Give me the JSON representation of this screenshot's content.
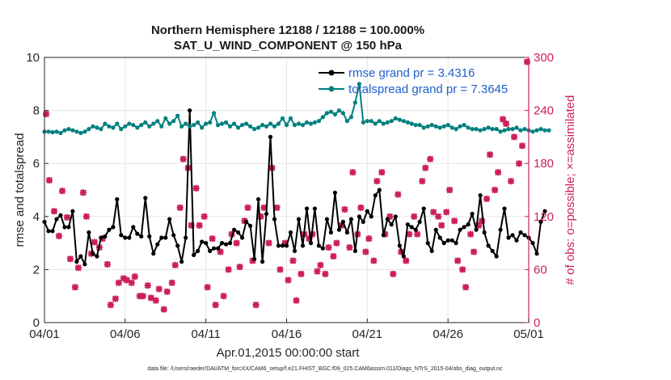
{
  "chart_data": {
    "type": "line",
    "title_line1": "Northern Hemisphere 12188 / 12188 = 100.000%",
    "title_line2": "SAT_U_WIND_COMPONENT @ 150 hPa",
    "xlabel": "Apr.01,2015 00:00:00 start",
    "ylabel_left": "rmse and totalspread",
    "ylabel_right": "# of obs: o=possible; ×=assimilated",
    "footer": "data file: /Users/raeder/DAI/ATM_forcXX/CAM6_setup/f.e21.FHIST_BGC.f09_025.CAM6assim.011/Diags_NTrS_2015-04/obs_diag_output.nc",
    "xlim": [
      0,
      30
    ],
    "ylim_left": [
      0,
      10
    ],
    "ylim_right": [
      0,
      300
    ],
    "x_ticks": [
      0,
      5,
      10,
      15,
      20,
      25,
      30
    ],
    "x_tick_labels": [
      "04/01",
      "04/06",
      "04/11",
      "04/16",
      "04/21",
      "04/26",
      "05/01"
    ],
    "y_ticks_left": [
      0,
      2,
      4,
      6,
      8,
      10
    ],
    "y_tick_labels_left": [
      "0",
      "2",
      "4",
      "6",
      "8",
      "10"
    ],
    "y_ticks_right": [
      0,
      60,
      120,
      180,
      240,
      300
    ],
    "y_tick_labels_right": [
      "0",
      "60",
      "120",
      "180",
      "240",
      "300"
    ],
    "grid": true,
    "legend_position": "top-right",
    "series": [
      {
        "name": "rmse grand pr = 3.4316",
        "color": "#000000",
        "marker": "circle",
        "step": 0.25,
        "values": [
          3.8,
          3.45,
          3.45,
          3.9,
          4.05,
          3.6,
          3.6,
          4.2,
          2.3,
          2.5,
          2.2,
          3.4,
          2.6,
          2.5,
          3.2,
          3.25,
          3.5,
          3.6,
          4.65,
          3.3,
          3.2,
          3.2,
          3.6,
          3.35,
          3.25,
          4.7,
          3.25,
          2.6,
          2.95,
          3.2,
          3.2,
          3.9,
          3.3,
          2.9,
          2.3,
          3.2,
          8.0,
          2.55,
          2.7,
          3.05,
          3.0,
          2.7,
          2.8,
          2.8,
          3.0,
          2.95,
          3.0,
          3.5,
          3.4,
          3.2,
          3.8,
          3.65,
          2.4,
          4.65,
          2.3,
          4.1,
          7.0,
          3.9,
          2.9,
          2.9,
          2.9,
          3.4,
          2.7,
          3.9,
          2.9,
          4.3,
          3.0,
          4.3,
          2.9,
          2.8,
          3.9,
          3.4,
          4.9,
          3.5,
          3.8,
          3.4,
          3.9,
          2.7,
          4.0,
          3.8,
          4.2,
          4.0,
          4.8,
          5.0,
          3.3,
          3.9,
          3.7,
          4.0,
          2.9,
          2.5,
          3.7,
          3.6,
          3.5,
          3.8,
          4.3,
          3.0,
          2.7,
          3.5,
          3.2,
          3.0,
          3.1,
          3.1,
          3.0,
          3.5,
          3.6,
          3.7,
          4.1,
          3.5,
          4.8,
          3.4,
          2.9,
          2.7,
          2.5,
          3.5,
          4.3,
          3.2,
          3.3,
          3.1,
          3.4,
          3.3,
          3.2,
          3.0,
          2.6,
          3.8,
          4.2
        ]
      },
      {
        "name": "totalspread grand pr = 7.3645",
        "color": "#00807f",
        "marker": "circle",
        "step": 0.25,
        "values": [
          7.2,
          7.2,
          7.18,
          7.2,
          7.15,
          7.25,
          7.3,
          7.25,
          7.2,
          7.15,
          7.2,
          7.3,
          7.4,
          7.35,
          7.3,
          7.5,
          7.4,
          7.35,
          7.5,
          7.3,
          7.4,
          7.5,
          7.45,
          7.35,
          7.45,
          7.55,
          7.4,
          7.5,
          7.6,
          7.4,
          7.7,
          7.5,
          7.6,
          7.8,
          7.4,
          7.5,
          7.4,
          7.45,
          7.55,
          7.35,
          7.5,
          7.55,
          7.9,
          7.45,
          7.5,
          7.55,
          7.4,
          7.5,
          7.35,
          7.45,
          7.5,
          7.4,
          7.3,
          7.35,
          7.45,
          7.4,
          7.5,
          7.4,
          7.5,
          7.7,
          7.45,
          7.7,
          7.45,
          7.5,
          7.45,
          7.55,
          7.5,
          7.55,
          7.6,
          7.75,
          7.9,
          7.95,
          7.85,
          8.0,
          7.9,
          7.6,
          7.75,
          8.3,
          9.0,
          7.55,
          7.6,
          7.6,
          7.5,
          7.6,
          7.5,
          7.55,
          7.6,
          7.7,
          7.65,
          7.6,
          7.55,
          7.5,
          7.45,
          7.45,
          7.35,
          7.4,
          7.45,
          7.4,
          7.35,
          7.4,
          7.45,
          7.35,
          7.3,
          7.4,
          7.45,
          7.35,
          7.3,
          7.3,
          7.25,
          7.3,
          7.35,
          7.3,
          7.3,
          7.2,
          7.25,
          7.3,
          7.3,
          7.35,
          7.25,
          7.3,
          7.25,
          7.2,
          7.25,
          7.3,
          7.25,
          7.25
        ]
      }
    ],
    "scatter": {
      "name": "# of obs assimilated",
      "color": "#cc1f5a",
      "marker": "x",
      "x": [
        0.1,
        0.3,
        0.6,
        0.9,
        1.1,
        1.4,
        1.6,
        1.9,
        2.1,
        2.4,
        2.6,
        2.9,
        3.1,
        3.4,
        3.6,
        3.9,
        4.1,
        4.4,
        4.6,
        4.9,
        5.1,
        5.4,
        5.6,
        5.9,
        6.1,
        6.4,
        6.6,
        6.9,
        7.1,
        7.4,
        7.6,
        7.9,
        8.1,
        8.4,
        8.6,
        8.9,
        9.1,
        9.4,
        9.6,
        9.9,
        10.1,
        10.4,
        10.6,
        10.9,
        11.1,
        11.4,
        11.6,
        11.9,
        12.1,
        12.4,
        12.6,
        12.9,
        13.1,
        13.4,
        13.6,
        13.9,
        14.1,
        14.4,
        14.6,
        14.9,
        15.1,
        15.4,
        15.6,
        15.9,
        16.1,
        16.4,
        16.6,
        16.9,
        17.1,
        17.4,
        17.6,
        17.9,
        18.1,
        18.4,
        18.6,
        18.9,
        19.1,
        19.4,
        19.6,
        19.9,
        20.1,
        20.4,
        20.6,
        20.9,
        21.1,
        21.4,
        21.6,
        21.9,
        22.1,
        22.4,
        22.6,
        22.9,
        23.1,
        23.4,
        23.6,
        23.9,
        24.1,
        24.4,
        24.6,
        24.9,
        25.1,
        25.4,
        25.6,
        25.9,
        26.1,
        26.4,
        26.6,
        26.9,
        27.1,
        27.4,
        27.6,
        27.9,
        28.1,
        28.4,
        28.6,
        28.9,
        29.1,
        29.4,
        29.6,
        29.9
      ],
      "y": [
        236,
        161,
        126,
        98,
        149,
        119,
        72,
        40,
        62,
        147,
        120,
        78,
        91,
        85,
        95,
        66,
        20,
        27,
        45,
        50,
        48,
        45,
        52,
        30,
        30,
        42,
        28,
        25,
        38,
        15,
        35,
        45,
        65,
        130,
        185,
        175,
        110,
        152,
        110,
        120,
        40,
        95,
        20,
        80,
        30,
        60,
        100,
        90,
        63,
        115,
        130,
        70,
        20,
        120,
        130,
        90,
        175,
        130,
        60,
        90,
        48,
        70,
        25,
        55,
        100,
        95,
        100,
        58,
        65,
        55,
        85,
        75,
        90,
        110,
        128,
        85,
        170,
        100,
        130,
        80,
        95,
        70,
        160,
        170,
        100,
        120,
        55,
        145,
        80,
        70,
        100,
        120,
        100,
        160,
        175,
        185,
        125,
        120,
        110,
        125,
        150,
        115,
        70,
        60,
        40,
        100,
        80,
        110,
        115,
        140,
        190,
        150,
        170,
        230,
        225,
        160,
        210,
        180,
        200,
        295
      ]
    }
  }
}
